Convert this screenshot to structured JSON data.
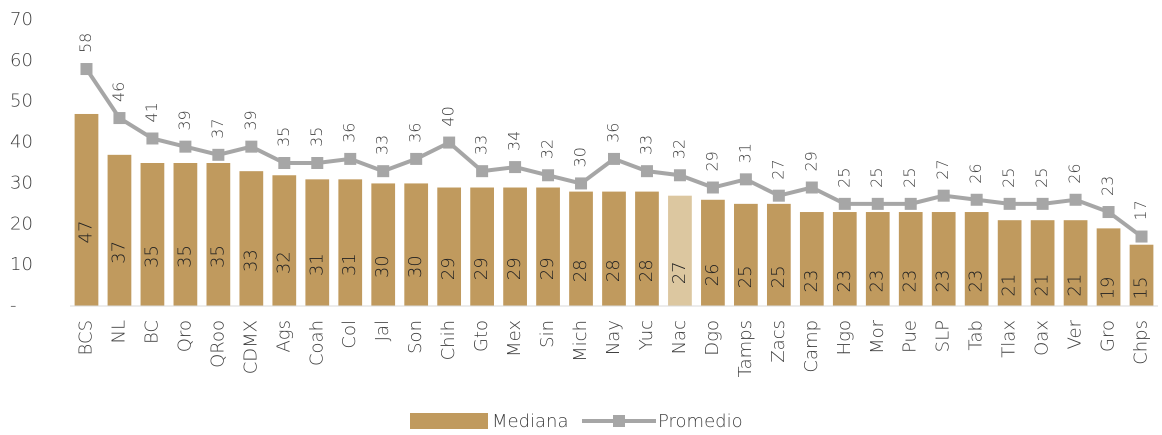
{
  "chart_data": {
    "type": "bar_line",
    "categories": [
      "BCS",
      "NL",
      "BC",
      "Qro",
      "QRoo",
      "CDMX",
      "Ags",
      "Coah",
      "Col",
      "Jal",
      "Son",
      "Chih",
      "Gto",
      "Mex",
      "Sin",
      "Mich",
      "Nay",
      "Yuc",
      "Nac",
      "Dgo",
      "Tamps",
      "Zacs",
      "Camp",
      "Hgo",
      "Mor",
      "Pue",
      "SLP",
      "Tab",
      "Tlax",
      "Oax",
      "Ver",
      "Gro",
      "Chps"
    ],
    "series": [
      {
        "name": "Mediana",
        "type": "bar",
        "color": "#c09a5e",
        "colors": [
          "#c09a5e",
          "#c09a5e",
          "#c09a5e",
          "#c09a5e",
          "#c09a5e",
          "#c09a5e",
          "#c09a5e",
          "#c09a5e",
          "#c09a5e",
          "#c09a5e",
          "#c09a5e",
          "#c09a5e",
          "#c09a5e",
          "#c09a5e",
          "#c09a5e",
          "#c09a5e",
          "#c09a5e",
          "#c09a5e",
          "#dcc7a0",
          "#c09a5e",
          "#c09a5e",
          "#c09a5e",
          "#c09a5e",
          "#c09a5e",
          "#c09a5e",
          "#c09a5e",
          "#c09a5e",
          "#c09a5e",
          "#c09a5e",
          "#c09a5e",
          "#c09a5e",
          "#c09a5e",
          "#c09a5e"
        ],
        "values": [
          47,
          37,
          35,
          35,
          35,
          33,
          32,
          31,
          31,
          30,
          30,
          29,
          29,
          29,
          29,
          28,
          28,
          28,
          27,
          26,
          25,
          25,
          23,
          23,
          23,
          23,
          23,
          23,
          21,
          21,
          21,
          19,
          15
        ]
      },
      {
        "name": "Promedio",
        "type": "line",
        "color": "#a6a6a6",
        "values": [
          58,
          46,
          41,
          39,
          37,
          39,
          35,
          35,
          36,
          33,
          36,
          40,
          33,
          34,
          32,
          30,
          36,
          33,
          32,
          29,
          31,
          27,
          29,
          25,
          25,
          25,
          27,
          26,
          25,
          25,
          26,
          23,
          17
        ]
      }
    ],
    "ylim": [
      0,
      70
    ],
    "yticks": [
      {
        "value": 0,
        "label": "-"
      },
      10,
      20,
      30,
      40,
      50,
      60,
      70
    ]
  }
}
